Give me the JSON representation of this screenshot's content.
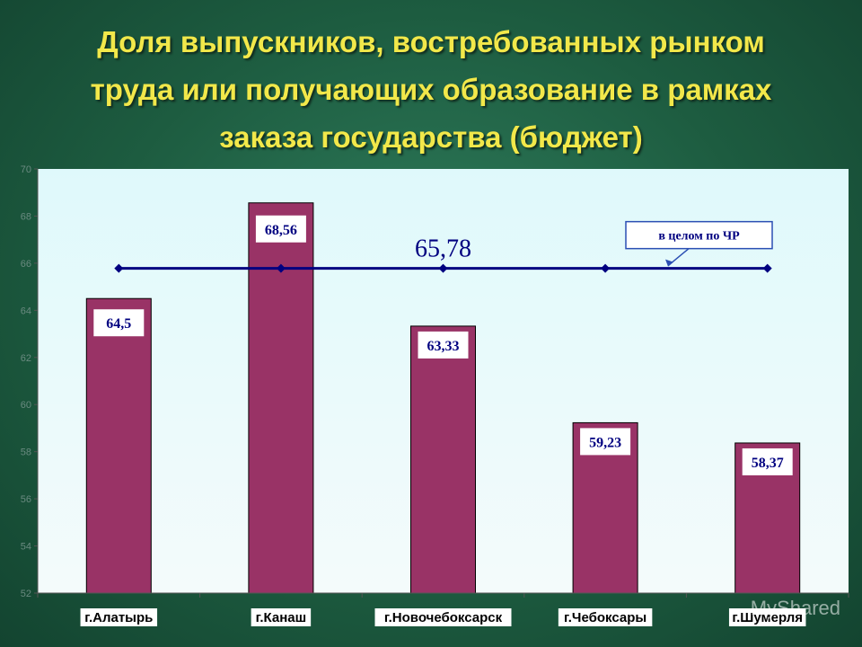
{
  "title_lines": [
    "Доля выпускников, востребованных рынком",
    "труда или получающих образование в рамках",
    "заказа государства (бюджет)"
  ],
  "watermark": "MyShared",
  "chart_data": {
    "type": "bar",
    "categories": [
      "г.Алатырь",
      "г.Канаш",
      "г.Новочебоксарск",
      "г.Чебоксары",
      "г.Шумерля"
    ],
    "values": [
      64.5,
      68.56,
      63.33,
      59.23,
      58.37
    ],
    "value_labels": [
      "64,5",
      "68,56",
      "63,33",
      "59,23",
      "58,37"
    ],
    "overlay_line": {
      "values": [
        65.78,
        65.78,
        65.78,
        65.78,
        65.78
      ],
      "label": "65,78",
      "callout": "в целом по ЧР"
    },
    "ylim": [
      52,
      70
    ],
    "yticks": [
      "52",
      "54",
      "56",
      "58",
      "60",
      "62",
      "64",
      "66",
      "68",
      "70"
    ],
    "grid": false,
    "colors": {
      "bar": "#993366",
      "line": "#000080",
      "plot_bg_top": "#dff9fb",
      "plot_bg_bottom": "#f4fbfb",
      "label_text": "#000080"
    }
  }
}
